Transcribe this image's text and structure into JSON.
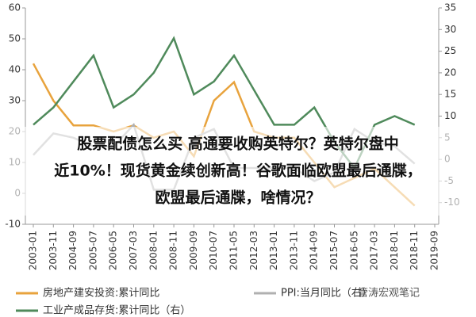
{
  "chart_data": {
    "type": "line",
    "categories": [
      "2003-01",
      "2003-11",
      "2004-09",
      "2005-07",
      "2006-05",
      "2007-03",
      "2008-01",
      "2008-11",
      "2009-09",
      "2010-07",
      "2011-05",
      "2012-03",
      "2013-01",
      "2013-11",
      "2014-09",
      "2015-07",
      "2016-05",
      "2017-03",
      "2018-01",
      "2018-11",
      "2019-09"
    ],
    "series": [
      {
        "name": "房地产建安投资:累计同比",
        "color": "#e8a33d",
        "values": [
          42,
          30,
          22,
          22,
          20,
          22,
          18,
          20,
          12,
          30,
          36,
          20,
          18,
          18,
          10,
          2,
          5,
          8,
          2,
          -4,
          null
        ]
      },
      {
        "name": "PPI:当月同比（右）",
        "color": "#b0b0b0",
        "axis": "y2",
        "values": [
          1,
          6,
          5,
          3,
          3,
          8,
          -7,
          -7,
          5,
          7,
          -2,
          -2,
          -2,
          -2,
          -5,
          -3,
          7,
          4,
          3,
          -1,
          null
        ]
      },
      {
        "name": "工业产成品存货:累计同比（右）",
        "color": "#4f8a5b",
        "axis": "y2",
        "values": [
          8,
          12,
          18,
          24,
          12,
          15,
          20,
          28,
          15,
          18,
          24,
          16,
          8,
          8,
          12,
          4,
          -2,
          8,
          10,
          8,
          null
        ]
      }
    ],
    "ylim": [
      -10,
      60
    ],
    "yticks": [
      -10,
      0,
      10,
      20,
      30,
      40,
      50,
      60
    ],
    "y2lim": [
      -15,
      35
    ],
    "y2ticks": [
      -10,
      -5,
      0,
      5,
      10,
      15,
      20,
      25,
      30,
      35
    ],
    "grid": false
  },
  "overlay_text": {
    "lines": [
      "股票配债怎么买 高通要收购英特尔？英特尔盘中",
      "近10%！现货黄金续创新高！谷歌面临欧盟最后通牒，",
      "欧盟最后通牒，啥情况？"
    ]
  },
  "watermark": "管涛宏观笔记"
}
